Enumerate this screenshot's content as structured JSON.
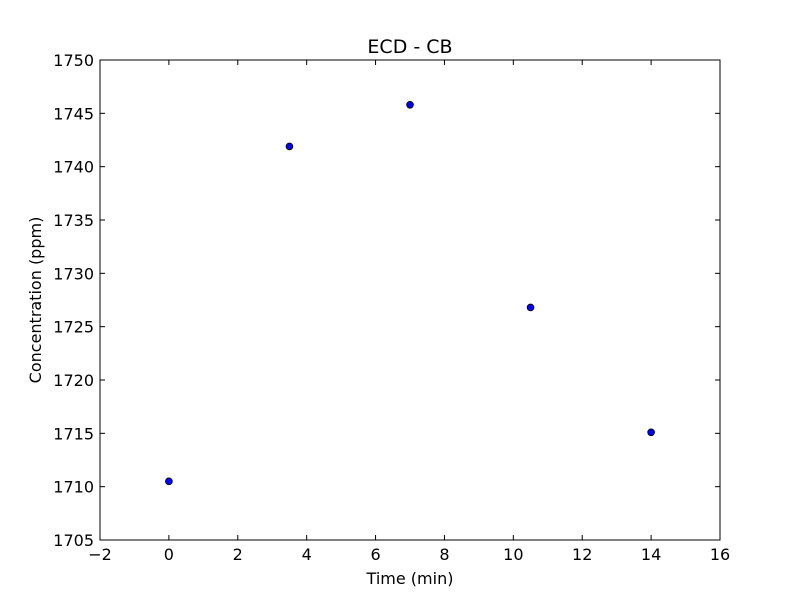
{
  "chart_data": {
    "type": "scatter",
    "title": "ECD - CB",
    "xlabel": "Time (min)",
    "ylabel": "Concentration (ppm)",
    "xlim": [
      -2,
      16
    ],
    "ylim": [
      1705,
      1750
    ],
    "xticks": [
      -2,
      0,
      2,
      4,
      6,
      8,
      10,
      12,
      14,
      16
    ],
    "xtick_labels": [
      "−2",
      "0",
      "2",
      "4",
      "6",
      "8",
      "10",
      "12",
      "14",
      "16"
    ],
    "yticks": [
      1705,
      1710,
      1715,
      1720,
      1725,
      1730,
      1735,
      1740,
      1745,
      1750
    ],
    "ytick_labels": [
      "1705",
      "1710",
      "1715",
      "1720",
      "1725",
      "1730",
      "1735",
      "1740",
      "1745",
      "1750"
    ],
    "grid": false,
    "marker_color": "#0000ff",
    "marker_edge_color": "#000000",
    "series": [
      {
        "x": [
          0,
          3.5,
          7,
          10.5,
          14
        ],
        "y": [
          1710.5,
          1741.9,
          1745.8,
          1726.8,
          1715.1
        ]
      }
    ]
  }
}
